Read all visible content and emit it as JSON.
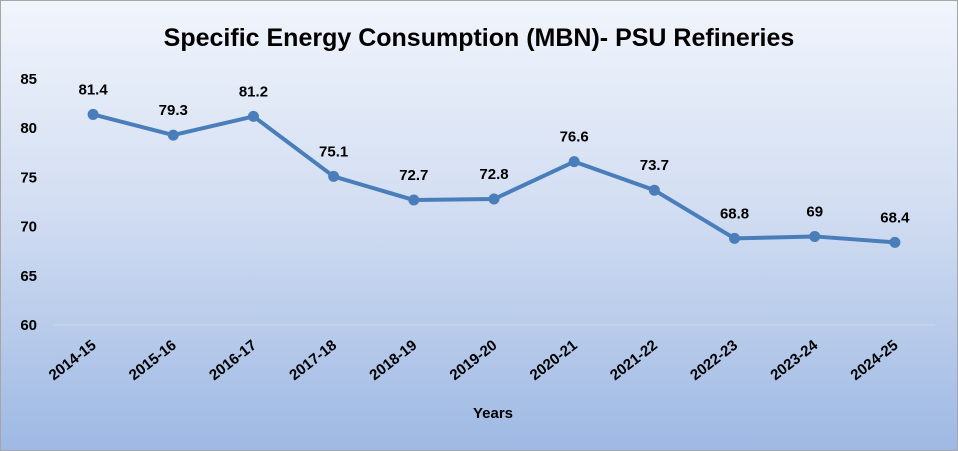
{
  "chart_data": {
    "type": "line",
    "title": "Specific Energy Consumption (MBN)- PSU Refineries",
    "xlabel": "Years",
    "ylabel": "",
    "ylim": [
      60,
      85
    ],
    "yticks": [
      60,
      65,
      70,
      75,
      80,
      85
    ],
    "grid": false,
    "legend": "none",
    "categories": [
      "2014-15",
      "2015-16",
      "2016-17",
      "2017-18",
      "2018-19",
      "2019-20",
      "2020-21",
      "2021-22",
      "2022-23",
      "2023-24",
      "2024-25"
    ],
    "series": [
      {
        "values": [
          81.4,
          79.3,
          81.2,
          75.1,
          72.7,
          72.8,
          76.6,
          73.7,
          68.8,
          69,
          68.4
        ],
        "color": "#4a7ebb"
      }
    ]
  }
}
